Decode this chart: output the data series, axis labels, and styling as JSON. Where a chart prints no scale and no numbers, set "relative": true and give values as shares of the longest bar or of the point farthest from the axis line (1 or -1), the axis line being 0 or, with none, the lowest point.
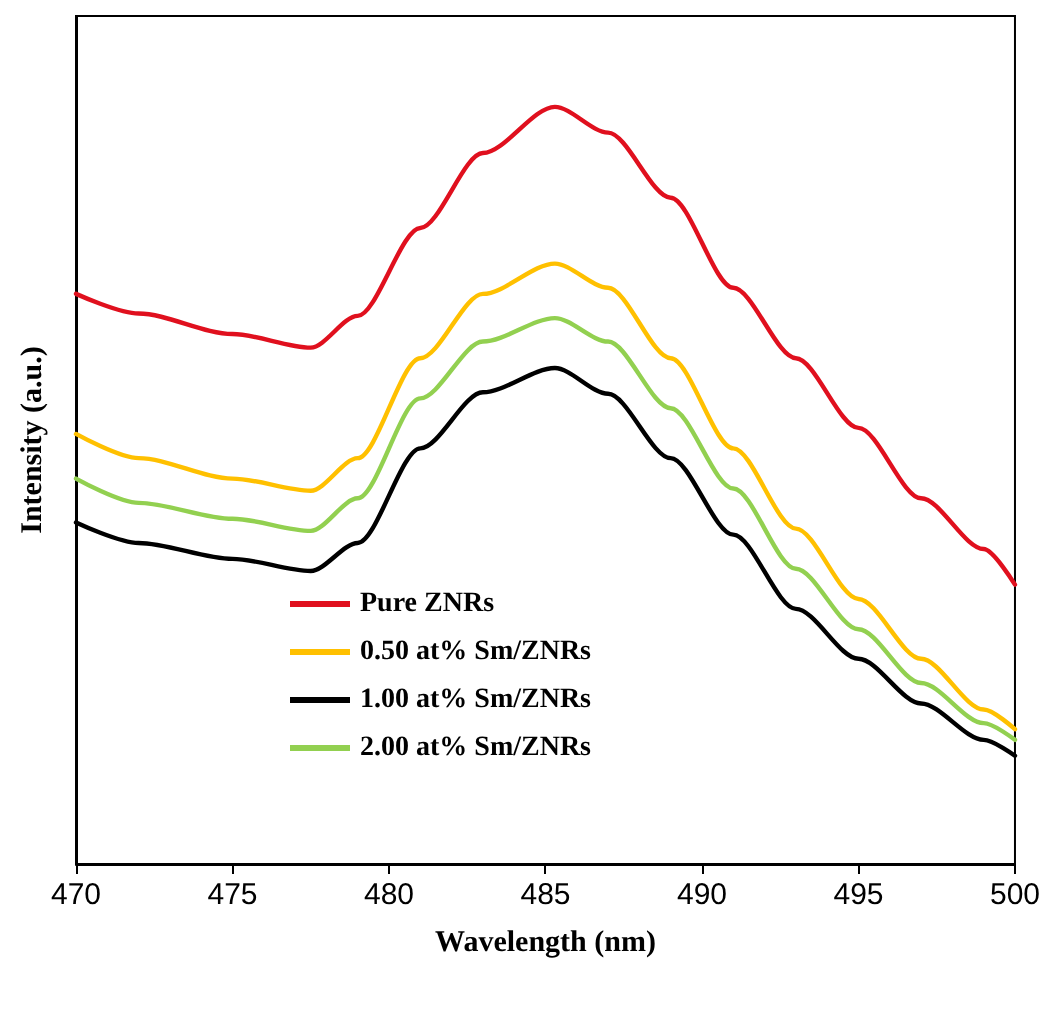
{
  "chart_data": {
    "type": "line",
    "xlabel": "Wavelength (nm)",
    "ylabel": "Intensity (a.u.)",
    "relative": true,
    "xlim": [
      470,
      500
    ],
    "xticks": [
      470,
      475,
      480,
      485,
      490,
      495,
      500
    ],
    "grid": false,
    "legend": "bottom",
    "marker": "none",
    "line_style": "solid",
    "x": [
      470,
      472,
      475,
      477.5,
      479,
      481,
      483,
      485.3,
      487,
      489,
      491,
      493,
      495,
      497,
      499,
      500
    ],
    "series": [
      {
        "name": "Pure ZNRs",
        "color": "#e0101e",
        "values": [
          0.753,
          0.727,
          0.7,
          0.682,
          0.724,
          0.84,
          0.939,
          1.0,
          0.966,
          0.88,
          0.761,
          0.668,
          0.576,
          0.483,
          0.416,
          0.369
        ]
      },
      {
        "name": "0.50 at% Sm/ZNRs",
        "color": "#ffc000",
        "values": [
          0.568,
          0.536,
          0.509,
          0.493,
          0.536,
          0.668,
          0.753,
          0.793,
          0.761,
          0.668,
          0.549,
          0.443,
          0.35,
          0.271,
          0.204,
          0.178
        ]
      },
      {
        "name": "1.00 at% Sm/ZNRs",
        "color": "#000000",
        "values": [
          0.451,
          0.424,
          0.403,
          0.387,
          0.424,
          0.549,
          0.623,
          0.655,
          0.621,
          0.536,
          0.435,
          0.337,
          0.271,
          0.212,
          0.164,
          0.143
        ]
      },
      {
        "name": "2.00 at% Sm/ZNRs",
        "color": "#92d050",
        "values": [
          0.509,
          0.477,
          0.456,
          0.44,
          0.483,
          0.615,
          0.69,
          0.721,
          0.69,
          0.602,
          0.496,
          0.39,
          0.31,
          0.239,
          0.186,
          0.164
        ]
      }
    ]
  }
}
